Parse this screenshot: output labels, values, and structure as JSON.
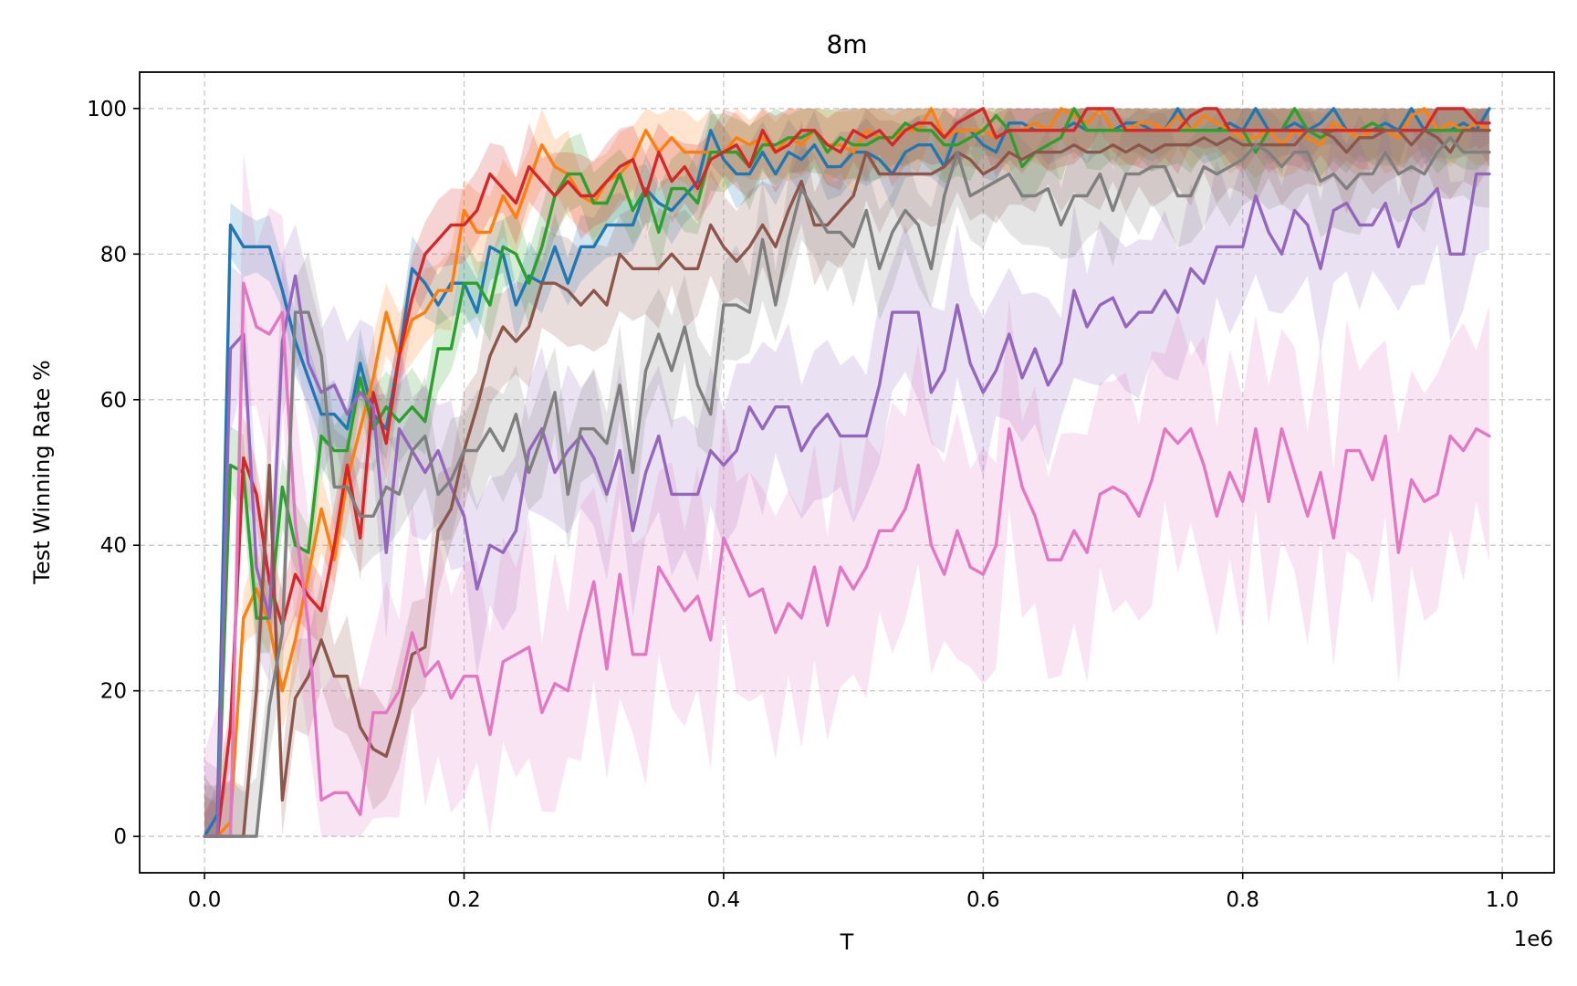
{
  "chart_data": {
    "type": "line",
    "title": "8m",
    "xlabel": "T",
    "ylabel": "Test Winning Rate %",
    "x_offset_label": "1e6",
    "xlim": [
      -0.05,
      1.04
    ],
    "ylim": [
      -5,
      105
    ],
    "x_ticks": [
      0.0,
      0.2,
      0.4,
      0.6,
      0.8,
      1.0
    ],
    "x_tick_labels": [
      "0.0",
      "0.2",
      "0.4",
      "0.6",
      "0.8",
      "1.0"
    ],
    "y_ticks": [
      0,
      20,
      40,
      60,
      80,
      100
    ],
    "y_tick_labels": [
      "0",
      "20",
      "40",
      "60",
      "80",
      "100"
    ],
    "grid": true,
    "x_step": 0.01,
    "series": [
      {
        "color": "#1f77b4",
        "band": 4,
        "values": [
          0,
          3,
          84,
          81,
          81,
          81,
          75,
          68,
          63,
          58,
          58,
          56,
          65,
          58,
          56,
          66,
          78,
          76,
          73,
          76,
          76,
          72,
          81,
          80,
          73,
          77,
          76,
          81,
          76,
          81,
          81,
          84,
          84,
          84,
          89,
          87,
          86,
          88,
          90,
          97,
          93,
          91,
          91,
          94,
          91,
          94,
          93,
          95,
          92,
          92,
          94,
          94,
          93,
          91,
          94,
          95,
          95,
          92,
          97,
          97,
          95,
          94,
          98,
          98,
          97,
          97,
          97,
          98,
          97,
          97,
          97,
          98,
          98,
          97,
          97,
          100,
          97,
          97,
          97,
          98,
          97,
          100,
          97,
          97,
          98,
          97,
          98,
          100,
          97,
          97,
          97,
          98,
          97,
          100,
          97,
          97,
          97,
          98,
          97,
          100
        ]
      },
      {
        "color": "#ff7f0e",
        "band": 5,
        "values": [
          0,
          0,
          2,
          30,
          34,
          29,
          20,
          27,
          36,
          45,
          38,
          49,
          56,
          63,
          72,
          66,
          71,
          72,
          75,
          75,
          86,
          83,
          83,
          88,
          85,
          90,
          95,
          92,
          91,
          88,
          87,
          90,
          91,
          93,
          97,
          94,
          96,
          94,
          94,
          94,
          94,
          96,
          95,
          96,
          94,
          96,
          95,
          97,
          95,
          95,
          94,
          97,
          96,
          96,
          97,
          97,
          100,
          96,
          97,
          97,
          97,
          96,
          97,
          97,
          98,
          97,
          100,
          99,
          98,
          100,
          97,
          97,
          98,
          98,
          97,
          99,
          97,
          99,
          98,
          97,
          96,
          96,
          97,
          95,
          97,
          96,
          95,
          98,
          97,
          96,
          97,
          97,
          96,
          99,
          100,
          97,
          98,
          97,
          98,
          97
        ]
      },
      {
        "color": "#2ca02c",
        "band": 5,
        "values": [
          0,
          0,
          51,
          50,
          30,
          30,
          48,
          40,
          39,
          55,
          53,
          53,
          63,
          56,
          59,
          57,
          59,
          57,
          67,
          67,
          76,
          76,
          73,
          81,
          80,
          76,
          81,
          88,
          91,
          91,
          87,
          87,
          91,
          86,
          89,
          83,
          89,
          89,
          87,
          94,
          94,
          94,
          92,
          95,
          95,
          96,
          96,
          97,
          94,
          96,
          95,
          95,
          96,
          96,
          98,
          97,
          97,
          95,
          95,
          96,
          97,
          99,
          97,
          92,
          94,
          95,
          96,
          100,
          97,
          97,
          97,
          97,
          97,
          97,
          97,
          97,
          97,
          97,
          97,
          97,
          97,
          94,
          97,
          97,
          100,
          97,
          96,
          97,
          97,
          97,
          98,
          97,
          97,
          97,
          97,
          97,
          97,
          97,
          97,
          97
        ]
      },
      {
        "color": "#d62728",
        "band": 5,
        "values": [
          0,
          0,
          15,
          52,
          47,
          35,
          29,
          36,
          33,
          31,
          40,
          51,
          41,
          61,
          54,
          66,
          74,
          80,
          82,
          84,
          84,
          86,
          91,
          89,
          87,
          92,
          90,
          88,
          90,
          88,
          88,
          90,
          92,
          93,
          88,
          94,
          90,
          92,
          89,
          93,
          94,
          95,
          92,
          97,
          94,
          95,
          97,
          97,
          95,
          94,
          97,
          96,
          97,
          95,
          97,
          98,
          98,
          96,
          98,
          99,
          100,
          96,
          97,
          97,
          97,
          97,
          97,
          97,
          100,
          100,
          100,
          97,
          97,
          97,
          97,
          97,
          99,
          100,
          100,
          97,
          97,
          97,
          97,
          97,
          97,
          97,
          97,
          97,
          97,
          97,
          97,
          97,
          97,
          97,
          97,
          100,
          100,
          100,
          98,
          98
        ]
      },
      {
        "color": "#9467bd",
        "band": 10,
        "values": [
          0,
          0,
          67,
          69,
          37,
          30,
          68,
          77,
          65,
          61,
          62,
          58,
          61,
          59,
          39,
          56,
          53,
          50,
          53,
          48,
          44,
          34,
          40,
          39,
          42,
          53,
          56,
          50,
          53,
          55,
          52,
          47,
          53,
          42,
          50,
          55,
          47,
          47,
          47,
          53,
          51,
          53,
          59,
          56,
          59,
          59,
          53,
          56,
          58,
          55,
          55,
          55,
          62,
          72,
          72,
          72,
          61,
          64,
          73,
          65,
          61,
          64,
          69,
          63,
          67,
          62,
          65,
          75,
          70,
          73,
          74,
          70,
          72,
          72,
          75,
          72,
          78,
          76,
          81,
          81,
          81,
          88,
          83,
          80,
          86,
          84,
          78,
          86,
          87,
          84,
          84,
          87,
          81,
          86,
          87,
          89,
          80,
          80,
          91,
          91
        ]
      },
      {
        "color": "#8c564b",
        "band": 7,
        "values": [
          0,
          0,
          0,
          0,
          20,
          51,
          5,
          19,
          22,
          27,
          22,
          22,
          15,
          12,
          11,
          17,
          25,
          26,
          42,
          45,
          53,
          59,
          66,
          70,
          68,
          70,
          76,
          76,
          75,
          73,
          75,
          73,
          80,
          78,
          78,
          78,
          80,
          78,
          78,
          84,
          81,
          79,
          81,
          84,
          81,
          86,
          90,
          84,
          84,
          86,
          88,
          94,
          91,
          91,
          91,
          91,
          91,
          92,
          94,
          93,
          91,
          92,
          94,
          93,
          94,
          94,
          94,
          95,
          94,
          94,
          95,
          94,
          95,
          94,
          95,
          95,
          95,
          96,
          95,
          96,
          95,
          95,
          95,
          95,
          95,
          97,
          97,
          96,
          94,
          96,
          96,
          97,
          97,
          95,
          97,
          96,
          94,
          97,
          97,
          97
        ]
      },
      {
        "color": "#e377c2",
        "band": 15,
        "values": [
          0,
          0,
          0,
          76,
          70,
          69,
          72,
          43,
          29,
          5,
          6,
          6,
          3,
          17,
          17,
          20,
          28,
          22,
          24,
          19,
          22,
          22,
          14,
          24,
          25,
          26,
          17,
          21,
          20,
          28,
          35,
          23,
          36,
          25,
          25,
          37,
          34,
          31,
          33,
          27,
          41,
          37,
          33,
          34,
          28,
          32,
          30,
          37,
          29,
          37,
          34,
          37,
          42,
          42,
          45,
          51,
          40,
          36,
          42,
          37,
          36,
          40,
          56,
          48,
          44,
          38,
          38,
          42,
          39,
          47,
          48,
          47,
          44,
          49,
          56,
          54,
          56,
          51,
          44,
          50,
          46,
          56,
          46,
          56,
          50,
          44,
          50,
          41,
          53,
          53,
          49,
          55,
          39,
          49,
          46,
          47,
          55,
          53,
          56,
          55
        ]
      },
      {
        "color": "#7f7f7f",
        "band": 7,
        "values": [
          0,
          0,
          0,
          0,
          0,
          18,
          28,
          72,
          72,
          66,
          48,
          48,
          44,
          44,
          48,
          47,
          53,
          55,
          47,
          49,
          53,
          53,
          56,
          53,
          58,
          50,
          55,
          61,
          47,
          56,
          56,
          54,
          62,
          50,
          64,
          69,
          64,
          70,
          62,
          58,
          73,
          73,
          72,
          82,
          73,
          82,
          89,
          86,
          83,
          83,
          81,
          86,
          78,
          83,
          86,
          84,
          78,
          88,
          94,
          88,
          89,
          90,
          91,
          88,
          88,
          89,
          84,
          88,
          88,
          91,
          86,
          91,
          91,
          92,
          92,
          88,
          88,
          92,
          91,
          92,
          93,
          95,
          94,
          92,
          94,
          94,
          90,
          91,
          89,
          91,
          91,
          94,
          91,
          92,
          91,
          94,
          96,
          94,
          94,
          94
        ]
      }
    ]
  }
}
